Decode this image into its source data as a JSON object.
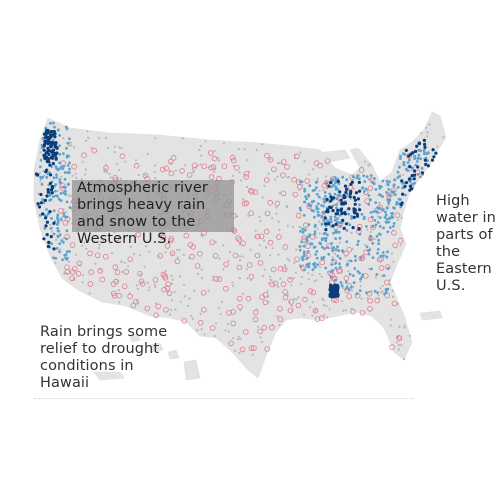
{
  "map": {
    "region": "United States",
    "land_color": "#e3e3e3",
    "background_color": "#ffffff",
    "high_water_color": "#0b3d7a",
    "above_normal_color": "#5ba3d0",
    "below_normal_color": "#e07a8c",
    "normal_color": "#b8b8b8"
  },
  "annotations": {
    "west": "Atmospheric river brings heavy rain and snow to the Western U.S.",
    "east": "High water in parts of the Eastern U.S.",
    "hawaii": "Rain brings some relief to drought conditions in Hawaii"
  }
}
